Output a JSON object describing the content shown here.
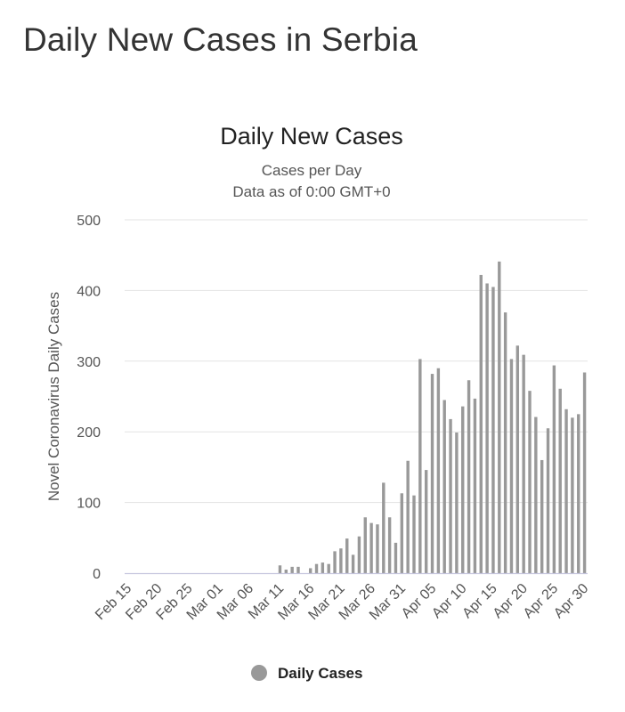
{
  "page": {
    "heading": "Daily New Cases in Serbia"
  },
  "chart_data": {
    "type": "bar",
    "title": "Daily New Cases",
    "subtitle_lines": [
      "Cases per Day",
      "Data as of 0:00 GMT+0"
    ],
    "xlabel": "",
    "ylabel": "Novel Coronavirus Daily Cases",
    "ylim": [
      0,
      500
    ],
    "y_ticks": [
      0,
      100,
      200,
      300,
      400,
      500
    ],
    "grid": true,
    "legend_position": "bottom-center",
    "bar_color": "#999999",
    "x_tick_labels": [
      "Feb 15",
      "Feb 20",
      "Feb 25",
      "Mar 01",
      "Mar 06",
      "Mar 11",
      "Mar 16",
      "Mar 21",
      "Mar 26",
      "Mar 31",
      "Apr 05",
      "Apr 10",
      "Apr 15",
      "Apr 20",
      "Apr 25",
      "Apr 30"
    ],
    "categories": [
      "Feb 15",
      "Feb 16",
      "Feb 17",
      "Feb 18",
      "Feb 19",
      "Feb 20",
      "Feb 21",
      "Feb 22",
      "Feb 23",
      "Feb 24",
      "Feb 25",
      "Feb 26",
      "Feb 27",
      "Feb 28",
      "Feb 29",
      "Mar 01",
      "Mar 02",
      "Mar 03",
      "Mar 04",
      "Mar 05",
      "Mar 06",
      "Mar 07",
      "Mar 08",
      "Mar 09",
      "Mar 10",
      "Mar 11",
      "Mar 12",
      "Mar 13",
      "Mar 14",
      "Mar 15",
      "Mar 16",
      "Mar 17",
      "Mar 18",
      "Mar 19",
      "Mar 20",
      "Mar 21",
      "Mar 22",
      "Mar 23",
      "Mar 24",
      "Mar 25",
      "Mar 26",
      "Mar 27",
      "Mar 28",
      "Mar 29",
      "Mar 30",
      "Mar 31",
      "Apr 01",
      "Apr 02",
      "Apr 03",
      "Apr 04",
      "Apr 05",
      "Apr 06",
      "Apr 07",
      "Apr 08",
      "Apr 09",
      "Apr 10",
      "Apr 11",
      "Apr 12",
      "Apr 13",
      "Apr 14",
      "Apr 15",
      "Apr 16",
      "Apr 17",
      "Apr 18",
      "Apr 19",
      "Apr 20",
      "Apr 21",
      "Apr 22",
      "Apr 23",
      "Apr 24",
      "Apr 25",
      "Apr 26",
      "Apr 27",
      "Apr 28",
      "Apr 29",
      "Apr 30"
    ],
    "series": [
      {
        "name": "Daily Cases",
        "values": [
          0,
          0,
          0,
          0,
          0,
          0,
          0,
          0,
          0,
          0,
          0,
          0,
          0,
          0,
          0,
          0,
          0,
          0,
          0,
          0,
          0,
          0,
          0,
          0,
          0,
          11,
          5,
          9,
          9,
          0,
          7,
          13,
          15,
          13,
          31,
          35,
          49,
          26,
          52,
          79,
          71,
          69,
          128,
          79,
          43,
          113,
          159,
          110,
          303,
          146,
          282,
          290,
          245,
          218,
          199,
          236,
          273,
          247,
          422,
          410,
          405,
          441,
          369,
          303,
          322,
          309,
          258,
          221,
          160,
          205,
          294,
          261,
          232,
          220,
          225,
          284
        ]
      }
    ]
  }
}
